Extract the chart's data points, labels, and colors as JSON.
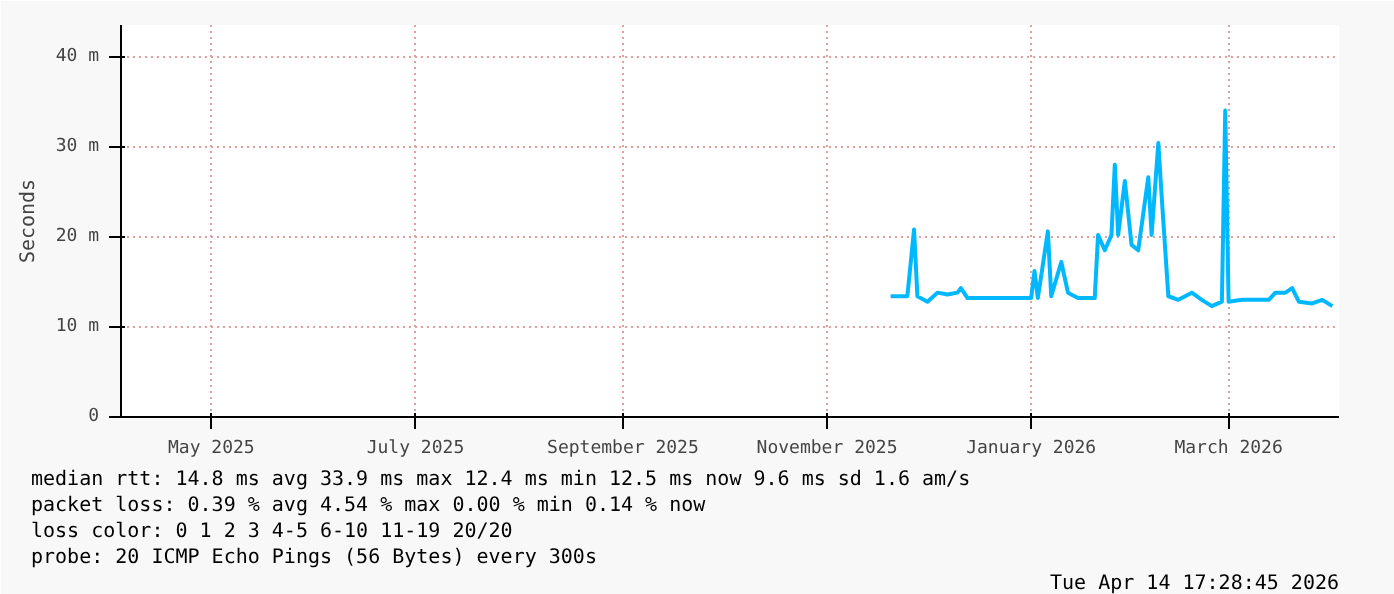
{
  "chart_data": {
    "type": "line",
    "ylabel": "Seconds",
    "x": [
      "2025-12-01",
      "2025-12-06",
      "2025-12-08",
      "2025-12-09",
      "2025-12-12",
      "2025-12-15",
      "2025-12-18",
      "2025-12-21",
      "2025-12-22",
      "2025-12-24",
      "2026-01-02",
      "2026-01-12",
      "2026-01-13",
      "2026-01-14",
      "2026-01-17",
      "2026-01-18",
      "2026-01-21",
      "2026-01-23",
      "2026-01-26",
      "2026-01-31",
      "2026-02-01",
      "2026-02-03",
      "2026-02-05",
      "2026-02-06",
      "2026-02-07",
      "2026-02-09",
      "2026-02-11",
      "2026-02-13",
      "2026-02-16",
      "2026-02-17",
      "2026-02-19",
      "2026-02-20",
      "2026-02-22",
      "2026-02-25",
      "2026-03-01",
      "2026-03-04",
      "2026-03-07",
      "2026-03-10",
      "2026-03-11",
      "2026-03-12",
      "2026-03-16",
      "2026-03-24",
      "2026-03-26",
      "2026-03-29",
      "2026-03-31",
      "2026-04-02",
      "2026-04-06",
      "2026-04-09",
      "2026-04-12"
    ],
    "series": [
      {
        "color": "#00b8ff",
        "values": [
          13.4,
          13.4,
          20.8,
          13.4,
          12.8,
          13.8,
          13.6,
          13.8,
          14.3,
          13.2,
          13.2,
          13.2,
          16.2,
          13.2,
          20.6,
          13.4,
          17.2,
          13.8,
          13.2,
          13.2,
          20.2,
          18.5,
          20.2,
          28,
          20.2,
          26.2,
          19.1,
          18.5,
          26.6,
          20.2,
          30.4,
          24.5,
          13.4,
          13,
          13.8,
          13,
          12.3,
          12.8,
          34,
          12.8,
          13,
          13,
          13.8,
          13.8,
          14.3,
          12.8,
          12.6,
          13,
          12.3
        ]
      }
    ],
    "xlim": [
      "2025-04-15",
      "2026-04-14"
    ],
    "xticks": [
      {
        "value": "2025-05-12",
        "label": "May 2025"
      },
      {
        "value": "2025-07-12",
        "label": "July 2025"
      },
      {
        "value": "2025-09-12",
        "label": "September 2025"
      },
      {
        "value": "2025-11-12",
        "label": "November 2025"
      },
      {
        "value": "2026-01-12",
        "label": "January 2026"
      },
      {
        "value": "2026-03-12",
        "label": "March 2026"
      }
    ],
    "ylim": [
      0,
      43.5
    ],
    "yticks": [
      0,
      {
        "value": 10,
        "label": "10 m"
      },
      {
        "value": 20,
        "label": "20 m"
      },
      {
        "value": 30,
        "label": "30 m"
      },
      {
        "value": 40,
        "label": "40 m"
      }
    ],
    "grid": true,
    "marker": "none",
    "line_style": "solid",
    "annotations": [
      "median rtt:  14.8 ms avg  33.9 ms max  12.4 ms min  12.5 ms now  9.6 ms sd  1.6   am/s",
      "packet loss: 0.39 % avg  4.54 % max  0.00 % min  0.14 % now",
      "loss color:  0  1  2  3  4-5  6-10  11-19  20/20",
      "probe:       20 ICMP Echo Pings (56 Bytes) every 300s",
      "Tue Apr 14 17:28:45 2026"
    ]
  }
}
